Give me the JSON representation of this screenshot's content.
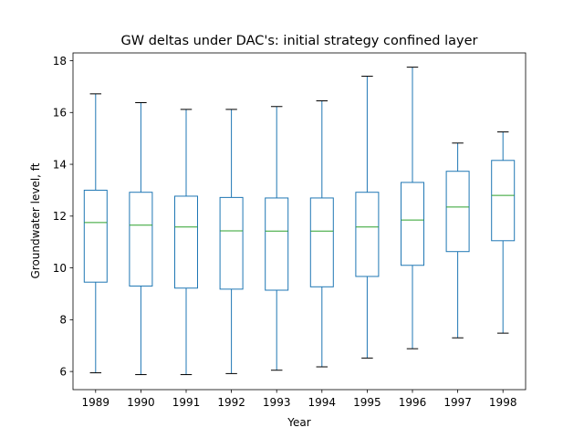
{
  "chart_data": {
    "type": "box",
    "title": "GW deltas under DAC's: initial strategy confined layer",
    "xlabel": "Year",
    "ylabel": "Groundwater level, ft",
    "ylim": [
      5.3,
      18.3
    ],
    "yticks": [
      6,
      8,
      10,
      12,
      14,
      16,
      18
    ],
    "grid": false,
    "colors": {
      "box": "#1f77b4",
      "median": "#2ca02c",
      "cap": "#000000"
    },
    "categories": [
      "1989",
      "1990",
      "1991",
      "1992",
      "1993",
      "1994",
      "1995",
      "1996",
      "1997",
      "1998"
    ],
    "boxes": [
      {
        "year": "1989",
        "min": 5.95,
        "q1": 9.45,
        "median": 11.75,
        "q3": 13.0,
        "max": 16.72
      },
      {
        "year": "1990",
        "min": 5.88,
        "q1": 9.3,
        "median": 11.65,
        "q3": 12.92,
        "max": 16.38
      },
      {
        "year": "1991",
        "min": 5.88,
        "q1": 9.22,
        "median": 11.58,
        "q3": 12.77,
        "max": 16.12
      },
      {
        "year": "1992",
        "min": 5.92,
        "q1": 9.18,
        "median": 11.43,
        "q3": 12.72,
        "max": 16.12
      },
      {
        "year": "1993",
        "min": 6.05,
        "q1": 9.14,
        "median": 11.42,
        "q3": 12.7,
        "max": 16.23
      },
      {
        "year": "1994",
        "min": 6.18,
        "q1": 9.27,
        "median": 11.42,
        "q3": 12.7,
        "max": 16.45
      },
      {
        "year": "1995",
        "min": 6.52,
        "q1": 9.67,
        "median": 11.58,
        "q3": 12.92,
        "max": 17.4
      },
      {
        "year": "1996",
        "min": 6.88,
        "q1": 10.1,
        "median": 11.85,
        "q3": 13.3,
        "max": 17.75
      },
      {
        "year": "1997",
        "min": 7.3,
        "q1": 10.63,
        "median": 12.35,
        "q3": 13.73,
        "max": 14.82
      },
      {
        "year": "1998",
        "min": 7.48,
        "q1": 11.05,
        "median": 12.8,
        "q3": 14.15,
        "max": 15.25
      }
    ]
  }
}
